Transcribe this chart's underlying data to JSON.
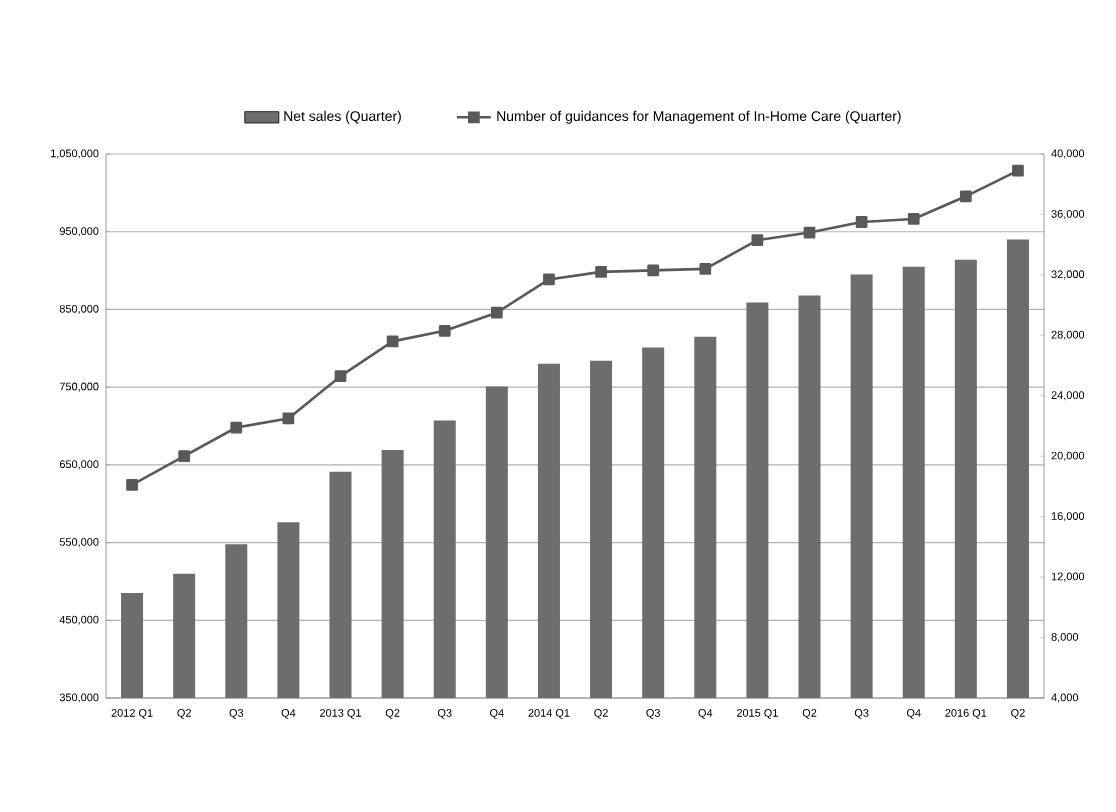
{
  "chart_data": {
    "type": "bar",
    "categories": [
      "2012 Q1",
      "Q2",
      "Q3",
      "Q4",
      "2013 Q1",
      "Q2",
      "Q3",
      "Q4",
      "2014 Q1",
      "Q2",
      "Q3",
      "Q4",
      "2015 Q1",
      "Q2",
      "Q3",
      "Q4",
      "2016 Q1",
      "Q2"
    ],
    "series": [
      {
        "name": "Net sales (Quarter)",
        "color": "#6d6d6d",
        "values": [
          485000,
          510000,
          548000,
          576000,
          641000,
          669000,
          707000,
          751000,
          780000,
          784000,
          801000,
          815000,
          859000,
          868000,
          895000,
          905000,
          914000,
          940000
        ]
      },
      {
        "name": "Number of guidances for Management of In-Home Care (Quarter)",
        "type": "line",
        "axis": "y2",
        "color": "#595959",
        "marker": "square",
        "values": [
          18100,
          20000,
          21900,
          22500,
          25300,
          27600,
          28300,
          29500,
          31700,
          32200,
          32300,
          32400,
          34300,
          34800,
          35500,
          35700,
          37200,
          38900
        ]
      }
    ],
    "ylim": [
      350000,
      1050000
    ],
    "yticks": [
      {
        "value": 350000,
        "label": "350,000"
      },
      {
        "value": 450000,
        "label": "450,000"
      },
      {
        "value": 550000,
        "label": "550,000"
      },
      {
        "value": 650000,
        "label": "650,000"
      },
      {
        "value": 750000,
        "label": "750,000"
      },
      {
        "value": 850000,
        "label": "850,000"
      },
      {
        "value": 950000,
        "label": "950,000"
      },
      {
        "value": 1050000,
        "label": "1,050,000"
      }
    ],
    "y2lim": [
      4000,
      40000
    ],
    "y2ticks": [
      {
        "value": 4000,
        "label": "4,000"
      },
      {
        "value": 8000,
        "label": "8,000"
      },
      {
        "value": 12000,
        "label": "12,000"
      },
      {
        "value": 16000,
        "label": "16,000"
      },
      {
        "value": 20000,
        "label": "20,000"
      },
      {
        "value": 24000,
        "label": "24,000"
      },
      {
        "value": 28000,
        "label": "28,000"
      },
      {
        "value": 32000,
        "label": "32,000"
      },
      {
        "value": 36000,
        "label": "36,000"
      },
      {
        "value": 40000,
        "label": "40,000"
      }
    ],
    "grid": "y",
    "legend": "top"
  }
}
